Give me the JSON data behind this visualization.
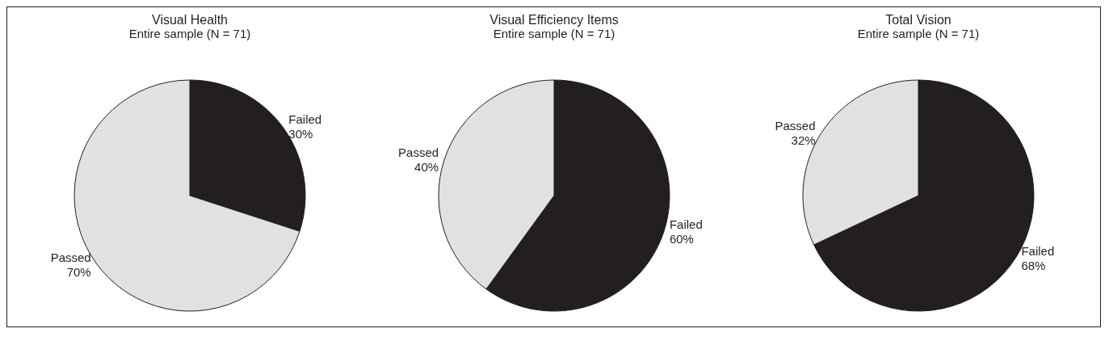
{
  "chart_data": [
    {
      "type": "pie",
      "title": "Visual Health",
      "subtitle": "Entire sample (N = 71)",
      "categories": [
        "Failed",
        "Passed"
      ],
      "values": [
        30,
        70
      ],
      "value_labels": [
        "30%",
        "70%"
      ],
      "colors": [
        "#231f20",
        "#e0e1e3"
      ]
    },
    {
      "type": "pie",
      "title": "Visual Efficiency Items",
      "subtitle": "Entire sample (N = 71)",
      "categories": [
        "Failed",
        "Passed"
      ],
      "values": [
        60,
        40
      ],
      "value_labels": [
        "60%",
        "40%"
      ],
      "colors": [
        "#231f20",
        "#e0e1e3"
      ]
    },
    {
      "type": "pie",
      "title": "Total Vision",
      "subtitle": "Entire sample (N = 71)",
      "categories": [
        "Failed",
        "Passed"
      ],
      "values": [
        68,
        32
      ],
      "value_labels": [
        "68%",
        "32%"
      ],
      "colors": [
        "#231f20",
        "#e0e1e3"
      ]
    }
  ]
}
